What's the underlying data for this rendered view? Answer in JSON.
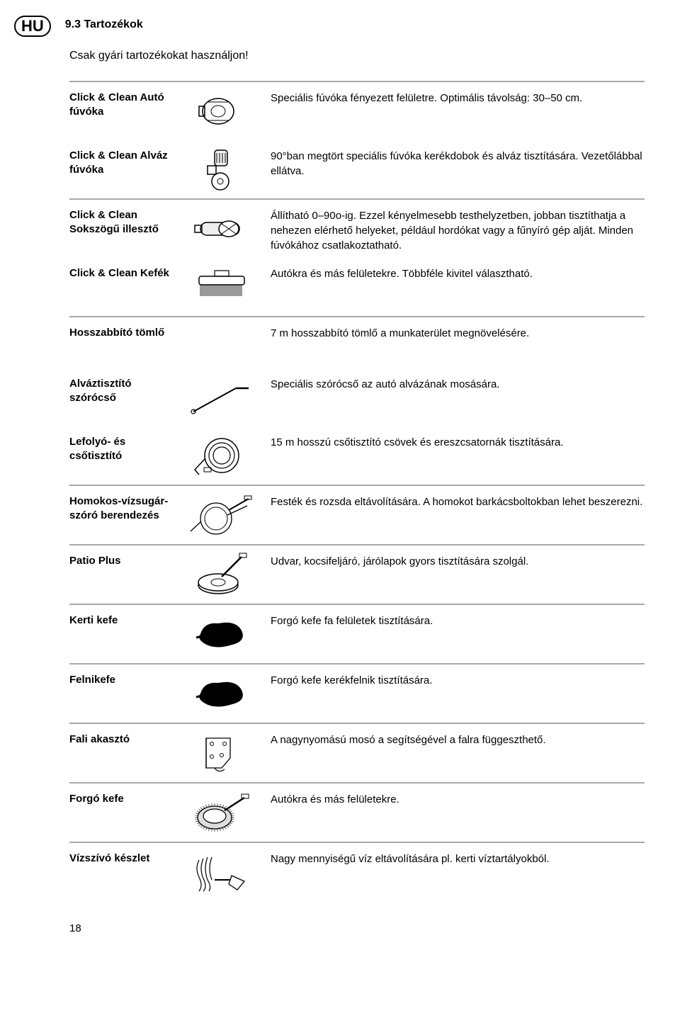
{
  "badge": "HU",
  "section_title": "9.3 Tartozékok",
  "intro": "Csak gyári tartozékokat használjon!",
  "page_number": "18",
  "colors": {
    "divider": "#a9a9a9",
    "text": "#000000",
    "background": "#ffffff"
  },
  "groups": [
    {
      "rows": [
        {
          "name": "Click & Clean Autó fúvóka",
          "icon": "auto-nozzle",
          "desc": "Speciális fúvóka fényezett felületre. Optimális távolság: 30–50 cm."
        },
        {
          "name": "Click & Clean Alváz fúvóka",
          "icon": "chassis-nozzle",
          "desc": "90°ban megtört speciális fúvóka kerékdobok és alváz tisz­títására. Vezetőlábbal ellátva."
        }
      ]
    },
    {
      "rows": [
        {
          "name": "Click & Clean Sokszögű illesztő",
          "icon": "multi-angle",
          "desc": "Állítható 0–90o-ig. Ezzel kényelmesebb testhelyzetben, jobban tisztíthatja a nehezen elérhető helyeket, például hordókat vagy a fűnyíró gép alját. Minden fúvókához csatlakoztatható."
        },
        {
          "name": "Click & Clean Kefék",
          "icon": "brush-flat",
          "desc": "Autókra és más felületekre. Többféle kivitel választható."
        }
      ]
    },
    {
      "rows": [
        {
          "name": "Hosszabbító tömlő",
          "icon": "none",
          "desc": "7 m hosszabbító tömlő a munkaterület megnövelésére."
        },
        {
          "name": "Alváztisztító szórócső",
          "icon": "lance",
          "desc": "Speciális szórócső az autó alvázának mosására."
        },
        {
          "name": "Lefolyó- és csőtisztító",
          "icon": "hose-coil",
          "desc": "15 m hosszú csőtisztító csövek és ereszcsatornák tisztítására."
        }
      ]
    },
    {
      "rows": [
        {
          "name": "Homokos-vízsugár-szóró berendezés",
          "icon": "sandblast",
          "desc": "Festék és rozsda eltávolítására. A homokot barkácsboltokban lehet beszerezni."
        }
      ]
    },
    {
      "rows": [
        {
          "name": "Patio Plus",
          "icon": "patio",
          "desc": "Udvar, kocsifeljáró, járólapok gyors tisztítására szolgál."
        }
      ]
    },
    {
      "rows": [
        {
          "name": "Kerti kefe",
          "icon": "blob-brush",
          "desc": "Forgó kefe fa felületek tisztítására."
        }
      ]
    },
    {
      "rows": [
        {
          "name": "Felnikefe",
          "icon": "blob-brush",
          "desc": "Forgó kefe kerékfelnik tisztítására."
        }
      ]
    },
    {
      "rows": [
        {
          "name": "Fali akasztó",
          "icon": "wall-bracket",
          "desc": "A nagynyomású mosó a segítségével a falra függeszthető."
        }
      ]
    },
    {
      "rows": [
        {
          "name": "Forgó kefe",
          "icon": "rotary-brush",
          "desc": "Autókra és más felületekre."
        }
      ]
    },
    {
      "rows": [
        {
          "name": "Vízszívó készlet",
          "icon": "suction-kit",
          "desc": "Nagy mennyiségű víz eltávolítására pl. kerti víztartályokból."
        }
      ]
    }
  ]
}
